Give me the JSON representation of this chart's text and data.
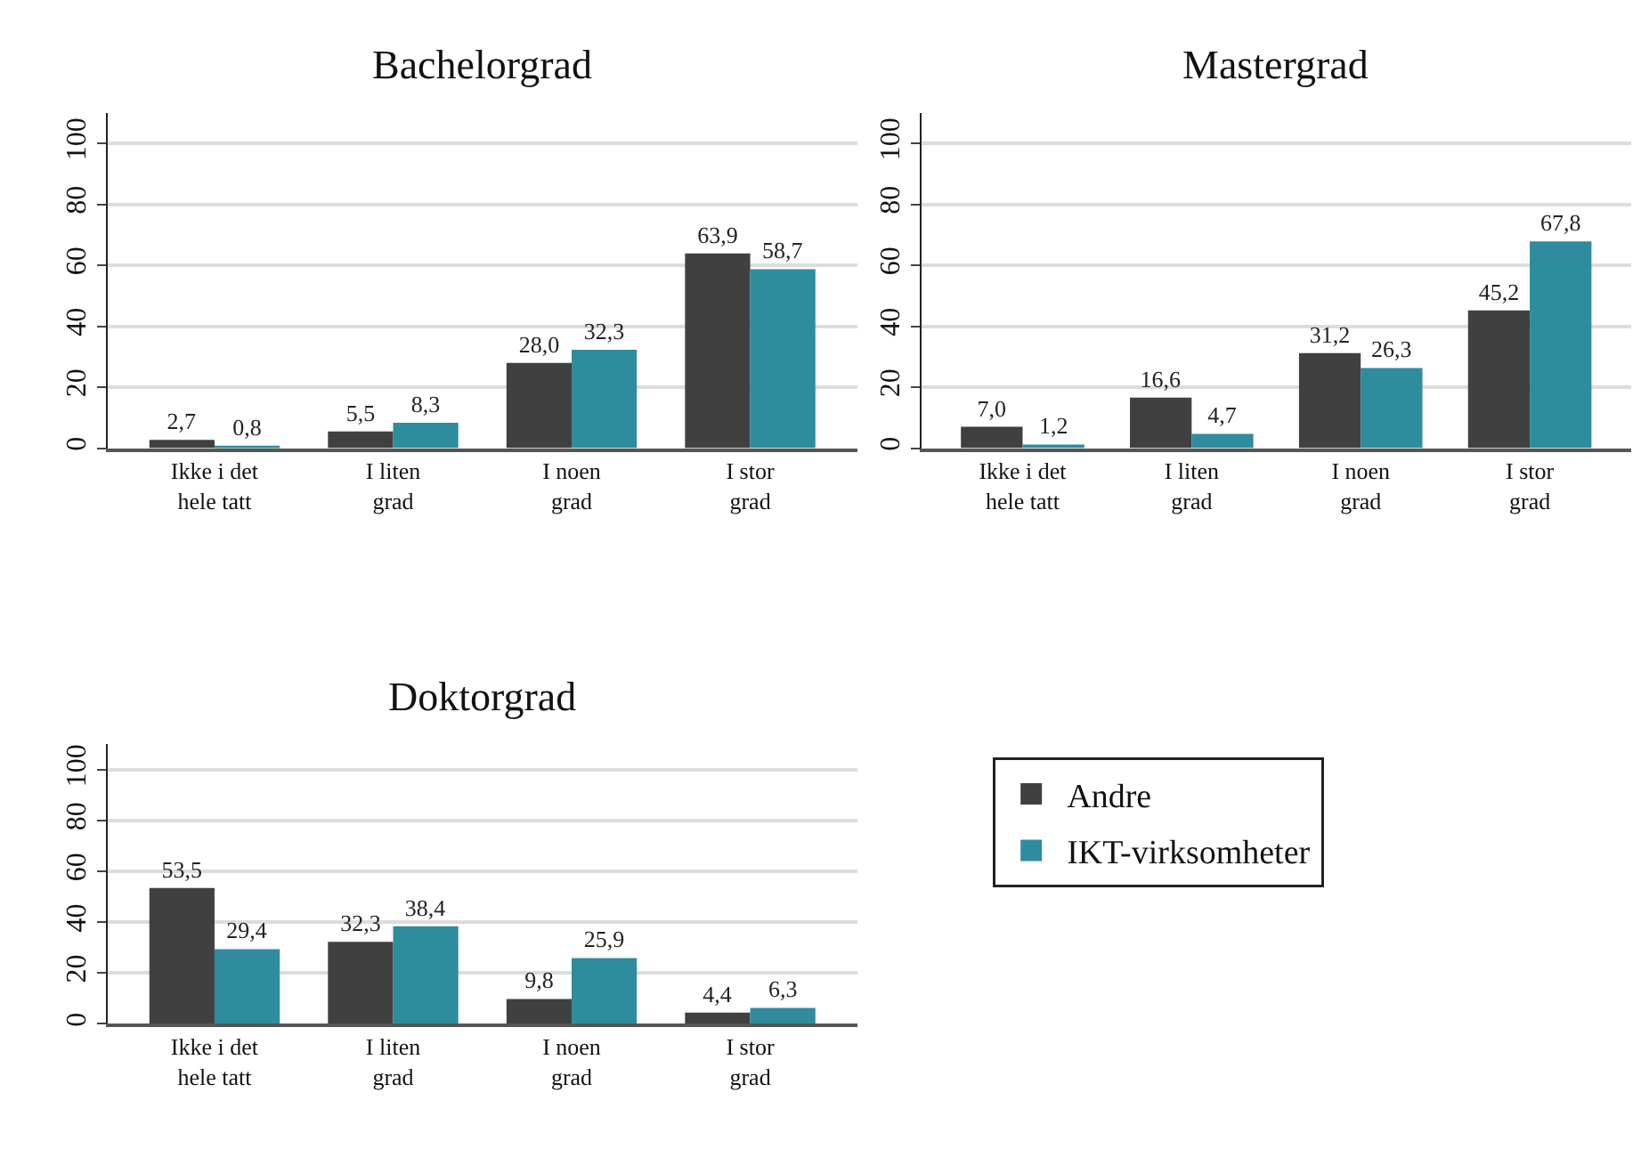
{
  "chart_data": [
    {
      "type": "bar",
      "title": "Bachelorgrad",
      "categories": [
        "Ikke i det\nhele tatt",
        "I liten\ngrad",
        "I noen\ngrad",
        "I stor\ngrad"
      ],
      "series": [
        {
          "name": "Andre",
          "color": "#404040",
          "values": [
            2.7,
            5.5,
            28.0,
            63.9
          ],
          "value_labels": [
            "2,7",
            "5,5",
            "28,0",
            "63,9"
          ]
        },
        {
          "name": "IKT-virksomheter",
          "color": "#2e8c9e",
          "values": [
            0.8,
            8.3,
            32.3,
            58.7
          ],
          "value_labels": [
            "0,8",
            "8,3",
            "32,3",
            "58,7"
          ]
        }
      ],
      "ylim": [
        0,
        110
      ],
      "yticks": [
        0,
        20,
        40,
        60,
        80,
        100
      ],
      "grid": "y",
      "legend": "bottom right"
    },
    {
      "type": "bar",
      "title": "Mastergrad",
      "categories": [
        "Ikke i det\nhele tatt",
        "I liten\ngrad",
        "I noen\ngrad",
        "I stor\ngrad"
      ],
      "series": [
        {
          "color": "#404040",
          "values": [
            7.0,
            16.6,
            31.2,
            45.2
          ],
          "value_labels": [
            "7,0",
            "16,6",
            "31,2",
            "45,2"
          ]
        },
        {
          "color": "#2e8c9e",
          "values": [
            1.2,
            4.7,
            26.3,
            67.8
          ],
          "value_labels": [
            "1,2",
            "4,7",
            "26,3",
            "67,8"
          ]
        }
      ],
      "ylim": [
        0,
        110
      ],
      "yticks": [
        0,
        20,
        40,
        60,
        80,
        100
      ],
      "grid": "y"
    },
    {
      "type": "bar",
      "title": "Doktorgrad",
      "categories": [
        "Ikke i det\nhele tatt",
        "I liten\ngrad",
        "I noen\ngrad",
        "I stor\ngrad"
      ],
      "series": [
        {
          "color": "#404040",
          "values": [
            53.5,
            32.3,
            9.8,
            4.4
          ],
          "value_labels": [
            "53,5",
            "32,3",
            "9,8",
            "4,4"
          ]
        },
        {
          "color": "#2e8c9e",
          "values": [
            29.4,
            38.4,
            25.9,
            6.3
          ],
          "value_labels": [
            "29,4",
            "38,4",
            "25,9",
            "6,3"
          ]
        }
      ],
      "ylim": [
        0,
        110
      ],
      "yticks": [
        0,
        20,
        40,
        60,
        80,
        100
      ],
      "grid": "y"
    }
  ]
}
